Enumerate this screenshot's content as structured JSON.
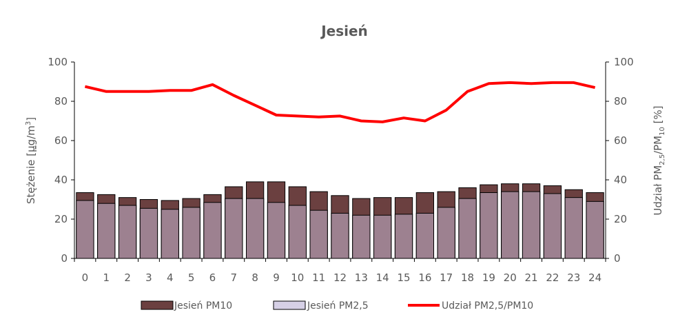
{
  "chart_data": {
    "type": "bar",
    "title": "Jesień",
    "ylabel_left": {
      "prefix": "Stężenie [",
      "mu": "μ",
      "mid": "g/m",
      "sup": "3",
      "suffix": "]"
    },
    "ylabel_right": {
      "prefix": "Udział PM",
      "sub1": "2,5",
      "mid": "/PM",
      "sub2": "10",
      "suffix": " [%]"
    },
    "ylim_left": [
      0,
      100
    ],
    "ylim_right": [
      0,
      100
    ],
    "yticks_left": [
      "0",
      "20",
      "40",
      "60",
      "80",
      "100"
    ],
    "yticks_right": [
      "0",
      "20",
      "40",
      "60",
      "80",
      "100"
    ],
    "grid": false,
    "legend_position": "bottom",
    "categories": [
      "0",
      "1",
      "2",
      "3",
      "4",
      "5",
      "6",
      "7",
      "8",
      "9",
      "10",
      "11",
      "12",
      "13",
      "14",
      "15",
      "16",
      "17",
      "18",
      "19",
      "20",
      "21",
      "22",
      "23",
      "24"
    ],
    "series": [
      {
        "name": "Jesień PM10",
        "type": "bar",
        "axis": "left",
        "color": "#6B4040",
        "values": [
          33.5,
          32.5,
          31,
          30,
          29.5,
          30.5,
          32.5,
          36.5,
          39,
          39,
          36.5,
          34,
          32,
          30.5,
          31,
          31,
          33.5,
          34,
          36,
          37.5,
          38,
          38,
          37,
          35,
          33.5
        ]
      },
      {
        "name": "Jesień PM2,5",
        "type": "bar",
        "axis": "left",
        "color": "#9D8190",
        "legend_color": "#D6D0E6",
        "values": [
          29.5,
          28,
          27,
          25.5,
          25,
          26,
          28.5,
          30.5,
          30.5,
          28.5,
          27,
          24.5,
          23,
          22,
          22,
          22.5,
          23,
          26,
          30.5,
          33.5,
          34,
          34,
          33,
          31,
          29
        ]
      },
      {
        "name": "Udział PM2,5/PM10",
        "type": "line",
        "axis": "right",
        "color": "#FF0000",
        "values": [
          87.5,
          85,
          85,
          85,
          85.5,
          85.5,
          88.5,
          83,
          78,
          73,
          72.5,
          72,
          72.5,
          70,
          69.5,
          71.5,
          70,
          75.5,
          85,
          89,
          89.5,
          89,
          89.5,
          89.5,
          87
        ]
      }
    ]
  }
}
